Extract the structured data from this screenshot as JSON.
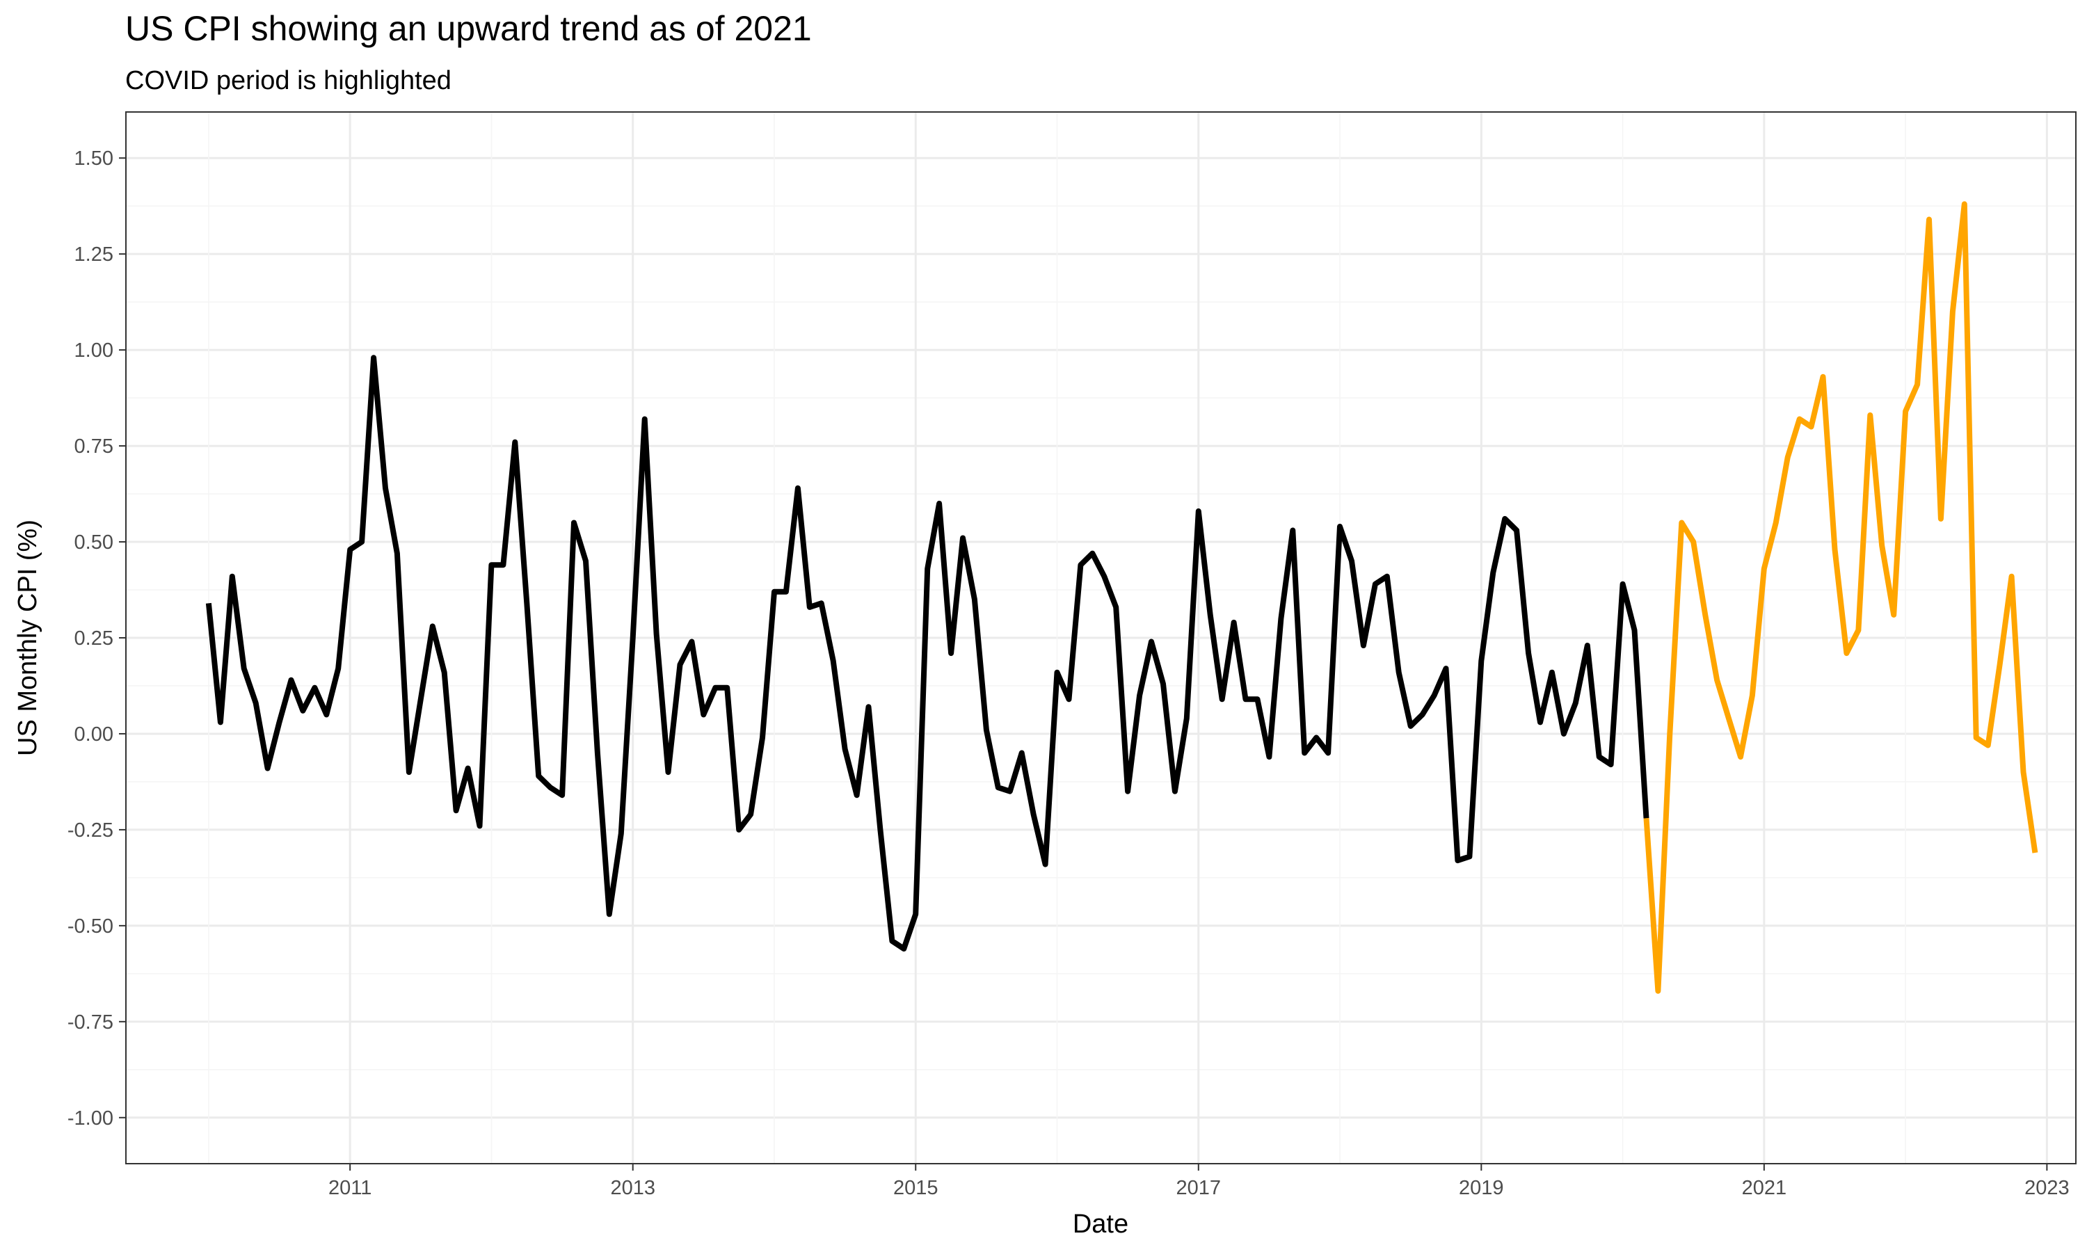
{
  "chart_data": {
    "type": "line",
    "title": "US CPI showing an upward trend as of 2021",
    "subtitle": "COVID period is highlighted",
    "xlabel": "Date",
    "ylabel": "US Monthly CPI (%)",
    "x_start": "2010-01",
    "x_frequency": "monthly",
    "x_ticks": [
      "2011",
      "2013",
      "2015",
      "2017",
      "2019",
      "2021",
      "2023"
    ],
    "y_ticks": [
      "-1.00",
      "-0.75",
      "-0.50",
      "-0.25",
      "0.00",
      "0.25",
      "0.50",
      "0.75",
      "1.00",
      "1.25",
      "1.50"
    ],
    "ylim": [
      -1.12,
      1.62
    ],
    "grid": true,
    "series": [
      {
        "color": "#000000",
        "start": "2010-01",
        "values": [
          0.34,
          0.03,
          0.41,
          0.17,
          0.08,
          -0.09,
          0.03,
          0.14,
          0.06,
          0.12,
          0.05,
          0.17,
          0.48,
          0.5,
          0.98,
          0.64,
          0.47,
          -0.1,
          0.09,
          0.28,
          0.16,
          -0.2,
          -0.09,
          -0.24,
          0.44,
          0.44,
          0.76,
          0.34,
          -0.11,
          -0.14,
          -0.16,
          0.55,
          0.45,
          -0.05,
          -0.47,
          -0.26,
          0.25,
          0.82,
          0.26,
          -0.1,
          0.18,
          0.24,
          0.05,
          0.12,
          0.12,
          -0.25,
          -0.21,
          -0.01,
          0.37,
          0.37,
          0.64,
          0.33,
          0.34,
          0.19,
          -0.04,
          -0.16,
          0.07,
          -0.25,
          -0.54,
          -0.56,
          -0.47,
          0.43,
          0.6,
          0.21,
          0.51,
          0.35,
          0.01,
          -0.14,
          -0.15,
          -0.05,
          -0.21,
          -0.34,
          0.16,
          0.09,
          0.44,
          0.47,
          0.41,
          0.33,
          -0.15,
          0.1,
          0.24,
          0.13,
          -0.15,
          0.04,
          0.58,
          0.31,
          0.09,
          0.29,
          0.09,
          0.09,
          -0.06,
          0.3,
          0.53,
          -0.05,
          -0.01,
          -0.05,
          0.54,
          0.45,
          0.23,
          0.39,
          0.41,
          0.16,
          0.02,
          0.05,
          0.1,
          0.17,
          -0.33,
          -0.32,
          0.19,
          0.42,
          0.56,
          0.53,
          0.21,
          0.03,
          0.16,
          0.0,
          0.08,
          0.23,
          -0.06,
          -0.08,
          0.39,
          0.27,
          -0.22
        ]
      },
      {
        "color": "#ffa500",
        "start": "2020-03",
        "values": [
          -0.22,
          -0.67,
          0.0,
          0.55,
          0.5,
          0.31,
          0.14,
          0.04,
          -0.06,
          0.1,
          0.43,
          0.55,
          0.72,
          0.82,
          0.8,
          0.93,
          0.48,
          0.21,
          0.27,
          0.83,
          0.49,
          0.31,
          0.84,
          0.91,
          1.34,
          0.56,
          1.1,
          1.38,
          -0.01,
          -0.03,
          0.18,
          0.41,
          -0.1,
          -0.31
        ]
      }
    ]
  }
}
